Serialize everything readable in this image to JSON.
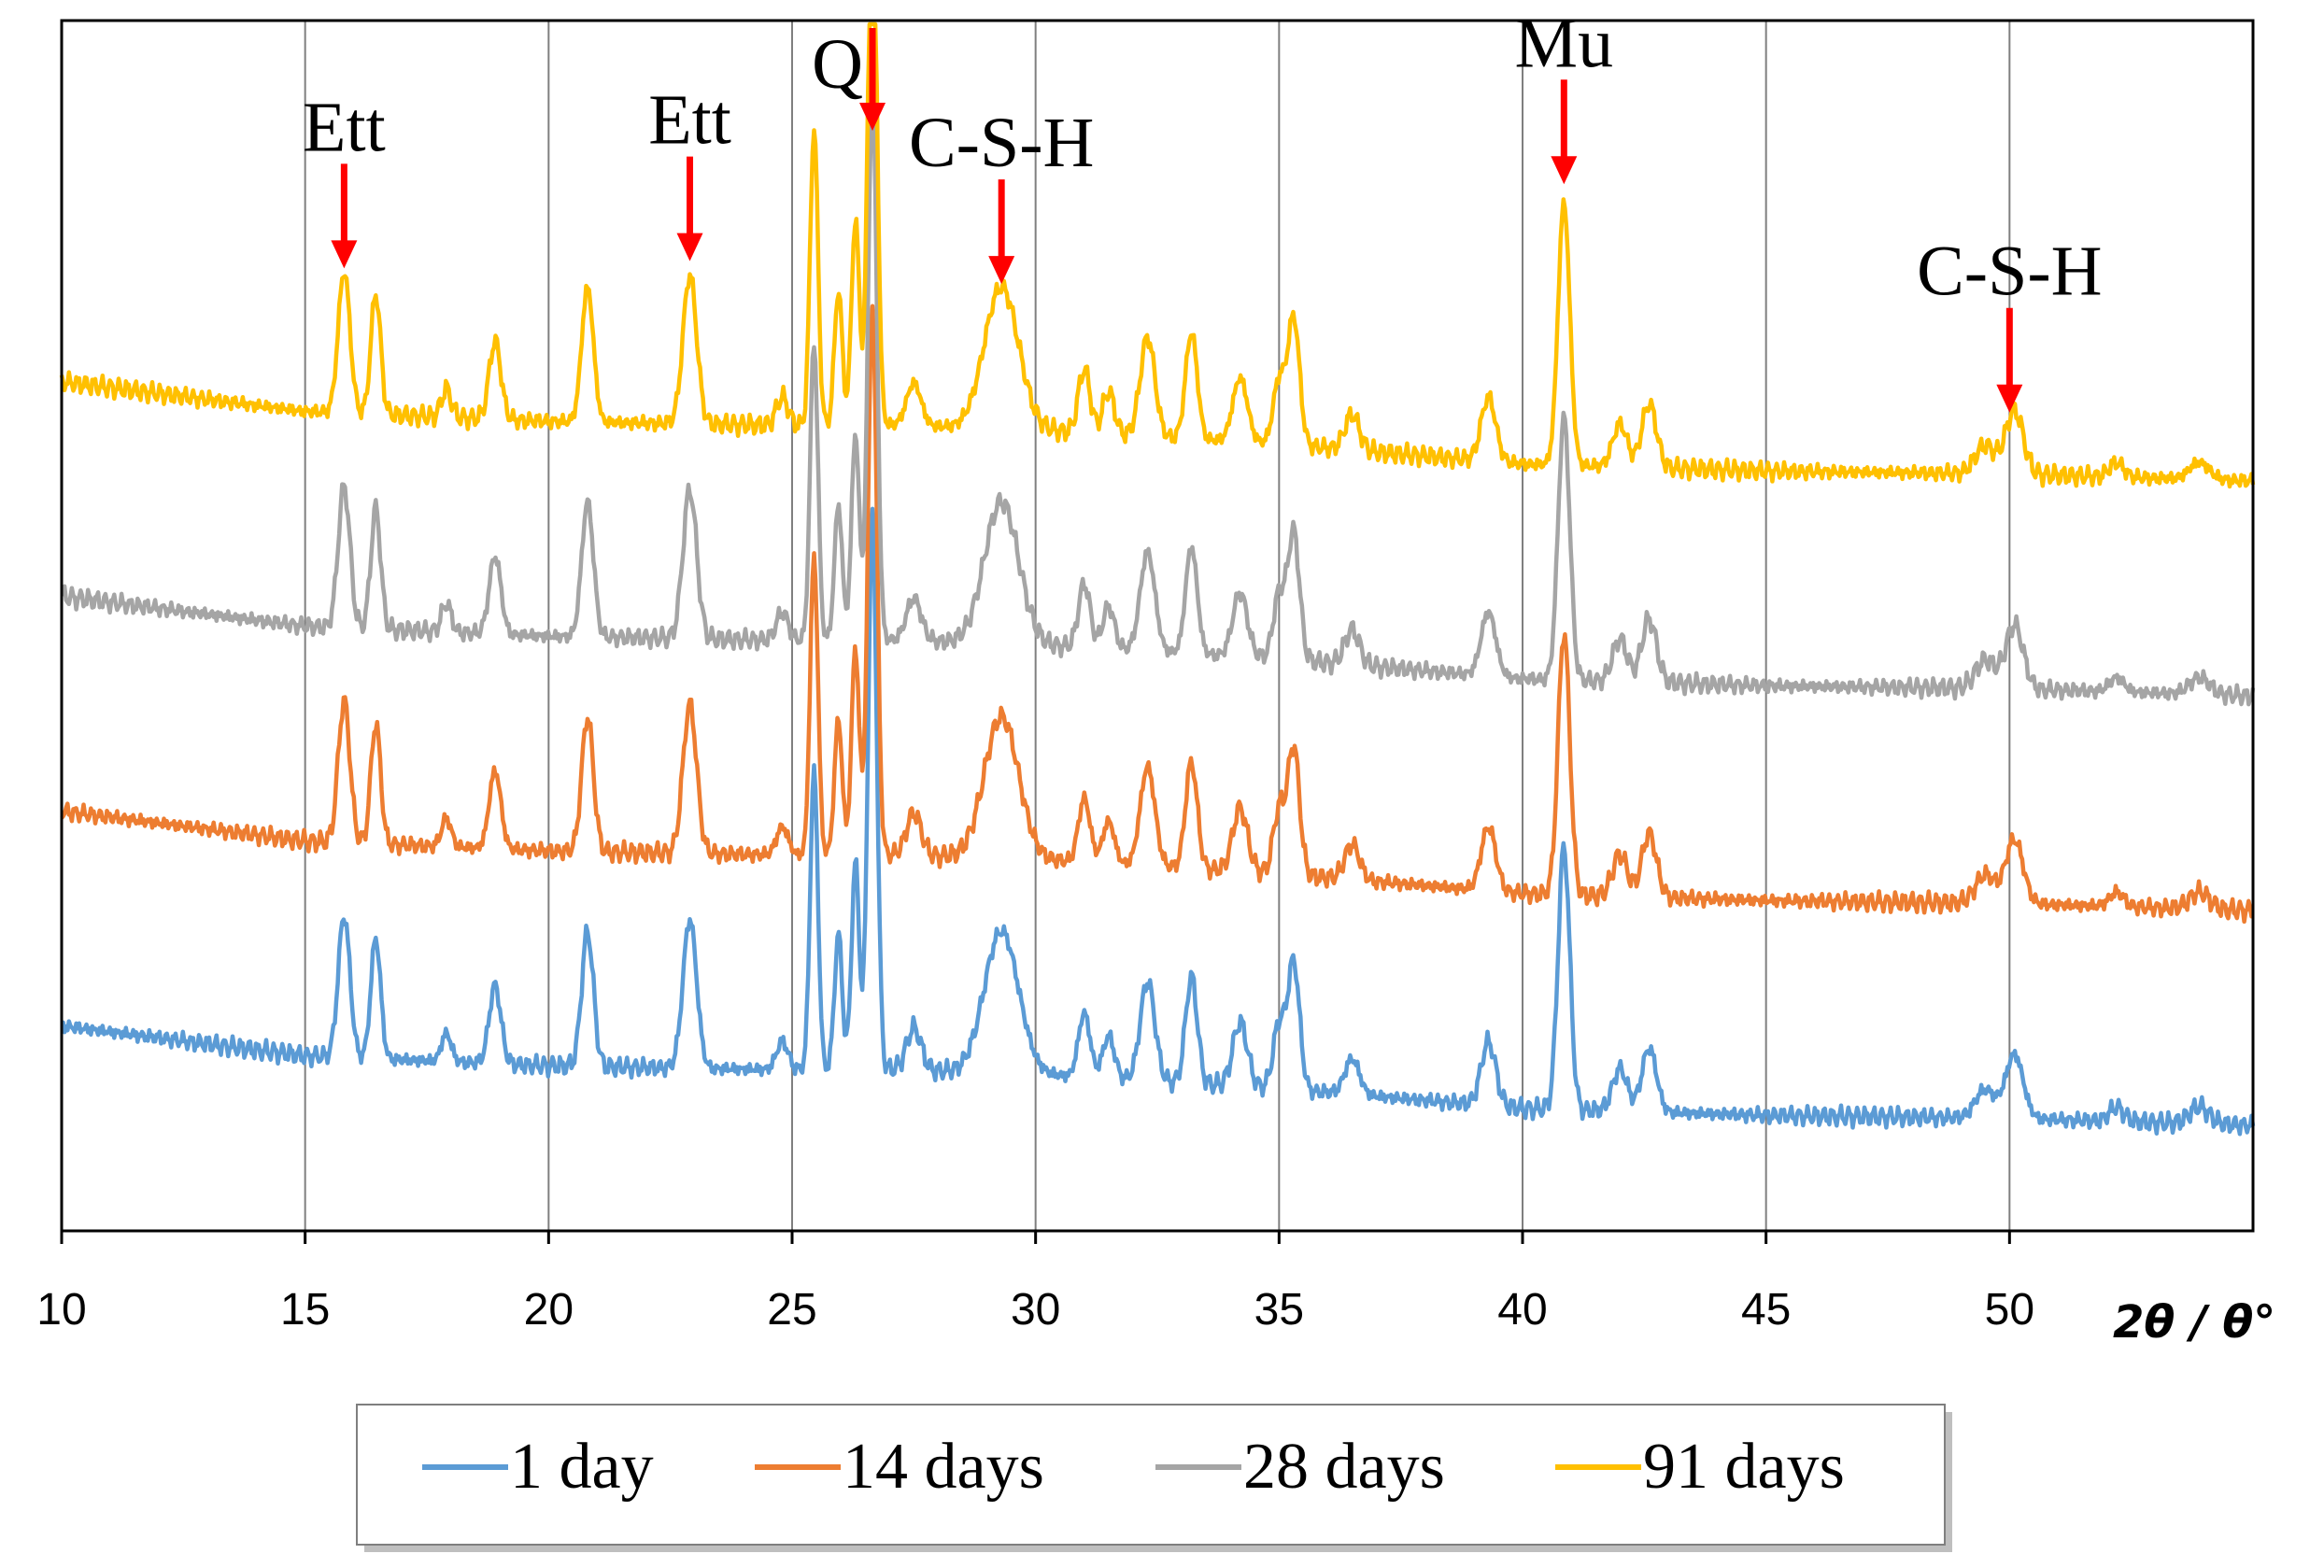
{
  "chart_data": {
    "type": "line",
    "title": "",
    "xlabel": "2θ / θ°",
    "ylabel": "",
    "xlim": [
      10,
      55
    ],
    "x_ticks": [
      "10",
      "15",
      "20",
      "25",
      "30",
      "35",
      "40",
      "45",
      "50"
    ],
    "grid": "vertical",
    "legend_position": "bottom",
    "series": [
      {
        "name": "1 day",
        "color": "#5B9BD5",
        "offset": 0
      },
      {
        "name": "14 days",
        "color": "#ED7D31",
        "offset": 1
      },
      {
        "name": "28 days",
        "color": "#A5A5A5",
        "offset": 2
      },
      {
        "name": "91 days",
        "color": "#FFC000",
        "offset": 3
      }
    ],
    "baseline_profile": [
      [
        10,
        1.0
      ],
      [
        15,
        0.79
      ],
      [
        20,
        0.72
      ],
      [
        25,
        0.69
      ],
      [
        26.5,
        0.7
      ],
      [
        30,
        0.66
      ],
      [
        35,
        0.56
      ],
      [
        40,
        0.42
      ],
      [
        45,
        0.37
      ],
      [
        50,
        0.35
      ],
      [
        55,
        0.3
      ]
    ],
    "peaks": [
      {
        "x": 15.8,
        "height": 1.0,
        "width": 0.12
      },
      {
        "x": 16.45,
        "height": 0.85,
        "width": 0.1
      },
      {
        "x": 17.9,
        "height": 0.2,
        "width": 0.1
      },
      {
        "x": 18.9,
        "height": 0.55,
        "width": 0.12
      },
      {
        "x": 20.8,
        "height": 0.95,
        "width": 0.12
      },
      {
        "x": 22.9,
        "height": 1.05,
        "width": 0.14
      },
      {
        "x": 24.8,
        "height": 0.2,
        "width": 0.12
      },
      {
        "x": 25.45,
        "height": 2.1,
        "width": 0.08
      },
      {
        "x": 25.95,
        "height": 0.95,
        "width": 0.08
      },
      {
        "x": 26.3,
        "height": 1.45,
        "width": 0.08
      },
      {
        "x": 26.65,
        "height": 3.9,
        "width": 0.09
      },
      {
        "x": 27.5,
        "height": 0.3,
        "width": 0.15
      },
      {
        "x": 29.3,
        "height": 1.0,
        "width": 0.35
      },
      {
        "x": 31.0,
        "height": 0.45,
        "width": 0.12
      },
      {
        "x": 31.5,
        "height": 0.3,
        "width": 0.12
      },
      {
        "x": 32.3,
        "height": 0.7,
        "width": 0.15
      },
      {
        "x": 33.2,
        "height": 0.75,
        "width": 0.12
      },
      {
        "x": 34.2,
        "height": 0.45,
        "width": 0.15
      },
      {
        "x": 35.0,
        "height": 0.45,
        "width": 0.12
      },
      {
        "x": 35.3,
        "height": 0.9,
        "width": 0.12
      },
      {
        "x": 36.5,
        "height": 0.25,
        "width": 0.15
      },
      {
        "x": 39.3,
        "height": 0.45,
        "width": 0.15
      },
      {
        "x": 40.85,
        "height": 1.85,
        "width": 0.12
      },
      {
        "x": 42.0,
        "height": 0.3,
        "width": 0.15
      },
      {
        "x": 42.6,
        "height": 0.45,
        "width": 0.15
      },
      {
        "x": 49.5,
        "height": 0.2,
        "width": 0.2
      },
      {
        "x": 50.1,
        "height": 0.45,
        "width": 0.18
      },
      {
        "x": 52.2,
        "height": 0.1,
        "width": 0.15
      },
      {
        "x": 53.9,
        "height": 0.12,
        "width": 0.2
      }
    ],
    "annotations": [
      {
        "label": "Ett",
        "x": 15.8
      },
      {
        "label": "Ett",
        "x": 22.9
      },
      {
        "label": "Q",
        "x": 26.65
      },
      {
        "label": "C-S-H",
        "x": 29.3
      },
      {
        "label": "Mu",
        "x": 40.85
      },
      {
        "label": "C-S-H",
        "x": 50.0
      }
    ],
    "annotation_color": "#FF0000"
  }
}
